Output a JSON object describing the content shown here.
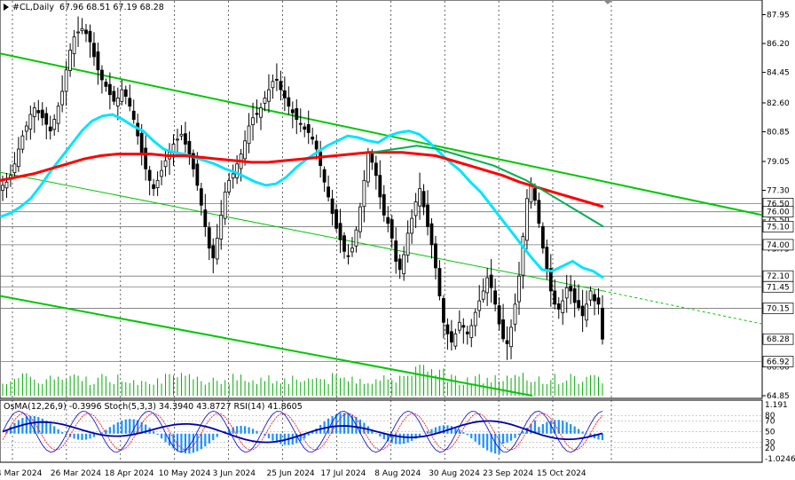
{
  "header": {
    "symbol": "#CL,Daily",
    "ohlc": "67.96 68.51 67.19 68.28"
  },
  "indicator_header": "OsMA(12,26,9) -0.3996  Stoch(5,3,3) 34.3940 43.8727  RSI(14) 41.8605",
  "colors": {
    "candle": "#000000",
    "ema_fast": "#00e5ff",
    "ema_slow": "#ff0000",
    "ema_mid": "#00b050",
    "trend": "#00c800",
    "osma": "#1e90ff",
    "stoch_main": "#0000cc",
    "stoch_signal": "#ff0000",
    "rsi": "#0000aa",
    "volume": "#00b000",
    "axis_label_bg": "#ffffff"
  },
  "chart_data": {
    "type": "candlestick",
    "price_axis_ticks": [
      "87.95",
      "86.20",
      "84.45",
      "82.60",
      "80.85",
      "79.05",
      "77.30",
      "75.50",
      "73.75",
      "72.00",
      "70.15",
      "68.40",
      "66.60",
      "64.85"
    ],
    "level_labels": [
      "76.50",
      "76.00",
      "75.10",
      "74.00",
      "72.10",
      "71.45",
      "70.15",
      "68.28",
      "66.92"
    ],
    "current_price": "68.28",
    "x_axis_labels": [
      "4 Mar 2024",
      "26 Mar 2024",
      "18 Apr 2024",
      "10 May 2024",
      "3 Jun 2024",
      "25 Jun 2024",
      "17 Jul 2024",
      "8 Aug 2024",
      "30 Aug 2024",
      "23 Sep 2024",
      "15 Oct 2024"
    ],
    "indicator_axis_labels": [
      "1.191",
      "80",
      "70",
      "50",
      "30",
      "20",
      "-1.0246"
    ],
    "ylim": [
      64.85,
      88.6
    ],
    "close_path": [
      77.6,
      77.8,
      78.2,
      78.9,
      79.8,
      80.6,
      81.2,
      81.9,
      82.3,
      82.0,
      81.7,
      81.3,
      80.9,
      81.6,
      82.4,
      83.3,
      84.6,
      85.8,
      86.6,
      86.9,
      87.1,
      86.8,
      86.3,
      85.4,
      84.6,
      84.0,
      83.6,
      83.1,
      82.7,
      82.9,
      83.4,
      83.0,
      82.4,
      81.6,
      80.6,
      79.6,
      78.6,
      77.9,
      77.4,
      77.9,
      78.5,
      79.1,
      79.6,
      80.1,
      80.4,
      80.7,
      80.1,
      79.4,
      78.6,
      77.6,
      76.4,
      75.1,
      73.8,
      73.2,
      74.4,
      75.8,
      77.2,
      77.9,
      78.3,
      78.9,
      79.5,
      80.3,
      81.2,
      81.7,
      81.9,
      82.3,
      82.9,
      83.4,
      83.9,
      84.0,
      83.4,
      82.9,
      82.4,
      82.0,
      81.6,
      81.3,
      81.0,
      80.8,
      80.4,
      79.8,
      78.8,
      77.8,
      76.9,
      75.9,
      75.0,
      74.3,
      73.6,
      73.3,
      73.8,
      74.9,
      76.3,
      77.9,
      79.6,
      79.0,
      78.2,
      76.9,
      75.8,
      75.3,
      74.4,
      73.0,
      72.5,
      73.4,
      74.7,
      75.6,
      76.6,
      77.4,
      76.3,
      75.1,
      74.0,
      72.6,
      70.9,
      69.3,
      68.6,
      68.1,
      68.6,
      69.3,
      69.0,
      68.6,
      69.1,
      69.9,
      70.6,
      71.2,
      72.0,
      71.4,
      70.4,
      69.2,
      68.3,
      68.0,
      69.0,
      70.4,
      72.1,
      74.5,
      76.8,
      77.6,
      76.7,
      75.3,
      73.8,
      72.5,
      71.2,
      70.4,
      70.1,
      70.6,
      71.4,
      71.2,
      70.5,
      70.2,
      69.7,
      70.4,
      71.2,
      70.6,
      70.4,
      68.28
    ],
    "ema_fast": [
      75.7,
      75.9,
      76.3,
      76.8,
      77.6,
      78.5,
      79.3,
      80.1,
      80.9,
      81.5,
      81.8,
      81.9,
      81.6,
      81.2,
      80.9,
      80.3,
      79.8,
      79.6,
      79.5,
      79.3,
      79.1,
      78.9,
      78.6,
      78.4,
      78.1,
      77.8,
      77.6,
      77.7,
      78.1,
      78.7,
      79.2,
      79.6,
      80.0,
      80.3,
      80.6,
      80.5,
      80.3,
      80.2,
      80.6,
      80.8,
      80.9,
      80.7,
      80.2,
      79.6,
      79.0,
      78.5,
      77.8,
      77.2,
      76.4,
      75.6,
      74.8,
      74.0,
      73.2,
      72.5,
      72.4,
      72.7,
      73.0,
      72.6,
      72.4,
      72.0
    ],
    "ema_slow": [
      77.9,
      78.1,
      78.3,
      78.6,
      78.9,
      79.2,
      79.4,
      79.5,
      79.5,
      79.5,
      79.4,
      79.4,
      79.3,
      79.2,
      79.1,
      79.0,
      79.0,
      79.1,
      79.2,
      79.3,
      79.4,
      79.5,
      79.6,
      79.6,
      79.6,
      79.5,
      79.4,
      79.1,
      78.8,
      78.5,
      78.2,
      77.8,
      77.5,
      77.2,
      76.9,
      76.6,
      76.3
    ],
    "ema_mid": [
      79.6,
      79.7,
      79.8,
      79.9,
      80.0,
      79.9,
      79.8,
      79.6,
      79.4,
      79.2,
      79.0,
      78.8,
      78.5,
      78.2,
      77.9,
      77.5,
      77.1,
      76.7,
      76.3,
      75.9,
      75.5,
      75.1
    ],
    "indicator_values": {
      "osma": -0.3996,
      "stoch_main": 34.394,
      "stoch_signal": 43.8727,
      "rsi": 41.8605
    }
  }
}
